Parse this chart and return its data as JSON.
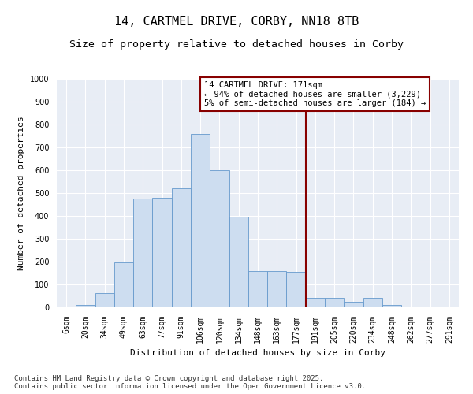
{
  "title_line1": "14, CARTMEL DRIVE, CORBY, NN18 8TB",
  "title_line2": "Size of property relative to detached houses in Corby",
  "xlabel": "Distribution of detached houses by size in Corby",
  "ylabel": "Number of detached properties",
  "background_color": "#e8edf5",
  "bar_color": "#cdddf0",
  "bar_edge_color": "#6699cc",
  "categories": [
    "6sqm",
    "20sqm",
    "34sqm",
    "49sqm",
    "63sqm",
    "77sqm",
    "91sqm",
    "106sqm",
    "120sqm",
    "134sqm",
    "148sqm",
    "163sqm",
    "177sqm",
    "191sqm",
    "205sqm",
    "220sqm",
    "234sqm",
    "248sqm",
    "262sqm",
    "277sqm",
    "291sqm"
  ],
  "values": [
    0,
    10,
    62,
    197,
    475,
    480,
    520,
    760,
    600,
    395,
    157,
    157,
    155,
    43,
    42,
    24,
    40,
    10,
    0,
    0,
    0
  ],
  "ylim": [
    0,
    1000
  ],
  "yticks": [
    0,
    100,
    200,
    300,
    400,
    500,
    600,
    700,
    800,
    900,
    1000
  ],
  "vline_color": "#880000",
  "annotation_text": "14 CARTMEL DRIVE: 171sqm\n← 94% of detached houses are smaller (3,229)\n5% of semi-detached houses are larger (184) →",
  "footer_text": "Contains HM Land Registry data © Crown copyright and database right 2025.\nContains public sector information licensed under the Open Government Licence v3.0.",
  "title_fontsize": 11,
  "subtitle_fontsize": 9.5,
  "axis_label_fontsize": 8,
  "tick_fontsize": 7,
  "annotation_fontsize": 7.5,
  "footer_fontsize": 6.5
}
